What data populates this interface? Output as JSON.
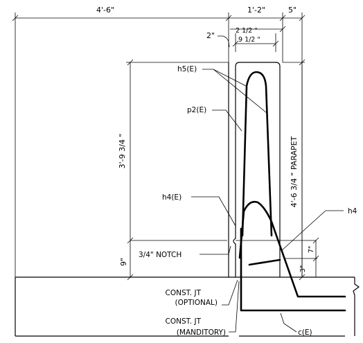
{
  "dimensions": {
    "top_overall": "4'-6\"",
    "wall_width": "1'-2\"",
    "right_offset": "5\"",
    "inset_left": "2\"",
    "inset_a": "2 1/2 \"",
    "inset_b": "9 1/2 \"",
    "wall_height": "3'-9 3/4 \"",
    "notch_height": "9\"",
    "parapet_height": "4'-6 3/4 \" PARAPET",
    "lower_dim_a": "7\"",
    "lower_dim_b": "3\""
  },
  "labels": {
    "h5": "h5(E)",
    "p2": "p2(E)",
    "h4_e": "h4(E)",
    "h4": "h4",
    "notch": "3/4\" NOTCH",
    "const_jt_optional_1": "CONST. JT",
    "const_jt_optional_2": "(OPTIONAL)",
    "const_jt_mandatory_1": "CONST. JT",
    "const_jt_mandatory_2": "(MANDITORY)",
    "c_e": "c(E)"
  }
}
